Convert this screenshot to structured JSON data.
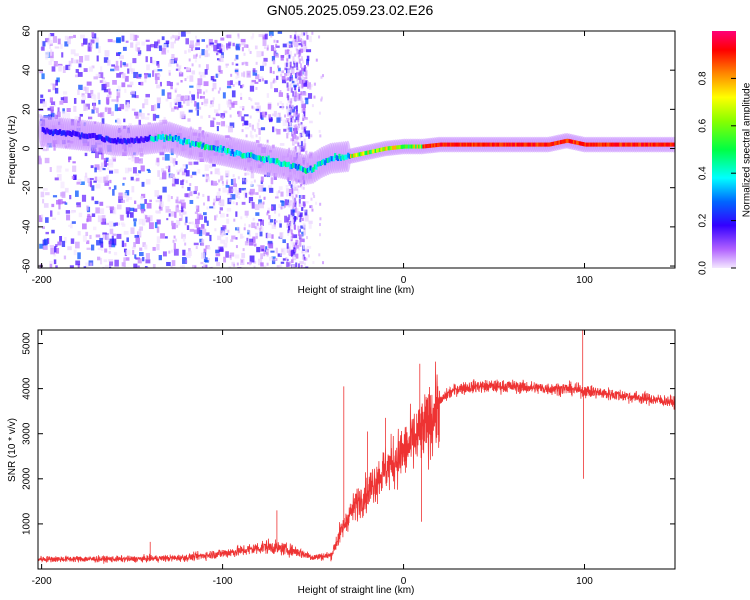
{
  "title": "GN05.2025.059.23.02.E26",
  "chart_data": [
    {
      "type": "heatmap",
      "xlabel": "Height of straight line (km)",
      "ylabel": "Frequency (Hz)",
      "xlim": [
        -202,
        150
      ],
      "ylim": [
        -61,
        60
      ],
      "xticks": [
        -200,
        -100,
        0,
        100
      ],
      "yticks": [
        -60,
        -40,
        -20,
        0,
        20,
        40,
        60
      ],
      "ridge": {
        "x": [
          -200,
          -190,
          -180,
          -170,
          -160,
          -150,
          -140,
          -130,
          -120,
          -110,
          -100,
          -90,
          -80,
          -70,
          -60,
          -55,
          -50,
          -45,
          -40,
          -30,
          -20,
          -10,
          0,
          10,
          20,
          40,
          60,
          80,
          90,
          100,
          120,
          150
        ],
        "y": [
          9,
          8,
          7,
          6,
          4,
          4,
          5,
          6,
          3,
          1,
          -1,
          -3,
          -5,
          -7,
          -9,
          -11,
          -10,
          -7,
          -5,
          -4,
          -2,
          0,
          1,
          1,
          2,
          2,
          2,
          2,
          4,
          2,
          2,
          2
        ]
      },
      "colorbar": {
        "label": "Normalized spectral amplitude",
        "ticks": [
          "0.0",
          "0.2",
          "0.4",
          "0.6",
          "0.8"
        ],
        "range": [
          0,
          1
        ]
      }
    },
    {
      "type": "line",
      "xlabel": "Height of straight line (km)",
      "ylabel": "SNR (10 * v/v)",
      "xlim": [
        -202,
        150
      ],
      "ylim": [
        0,
        5300
      ],
      "xticks": [
        -200,
        -100,
        0,
        100
      ],
      "yticks": [
        1000,
        2000,
        3000,
        4000,
        5000
      ],
      "color": "#ee3333",
      "envelope": {
        "x": [
          -202,
          -150,
          -120,
          -90,
          -75,
          -60,
          -50,
          -40,
          -35,
          -30,
          -25,
          -20,
          -15,
          -10,
          -5,
          0,
          5,
          10,
          15,
          20,
          25,
          30,
          40,
          60,
          80,
          90,
          100,
          110,
          120,
          130,
          150
        ],
        "y": [
          220,
          220,
          250,
          400,
          500,
          400,
          260,
          300,
          800,
          1200,
          1500,
          1700,
          2000,
          2200,
          2400,
          2600,
          2800,
          3000,
          3300,
          3700,
          3900,
          4000,
          4050,
          4050,
          4000,
          4000,
          3950,
          3900,
          3850,
          3800,
          3700
        ]
      },
      "spikes": [
        {
          "x": -140,
          "y": 600
        },
        {
          "x": -70,
          "y": 1300
        },
        {
          "x": -33,
          "y": 4050
        },
        {
          "x": -20,
          "y": 3050
        },
        {
          "x": -10,
          "y": 3350
        },
        {
          "x": 9,
          "y": 4550
        },
        {
          "x": 10,
          "y": 1050
        },
        {
          "x": 99,
          "y": 5300
        },
        {
          "x": 99.5,
          "y": 2000
        }
      ]
    }
  ]
}
